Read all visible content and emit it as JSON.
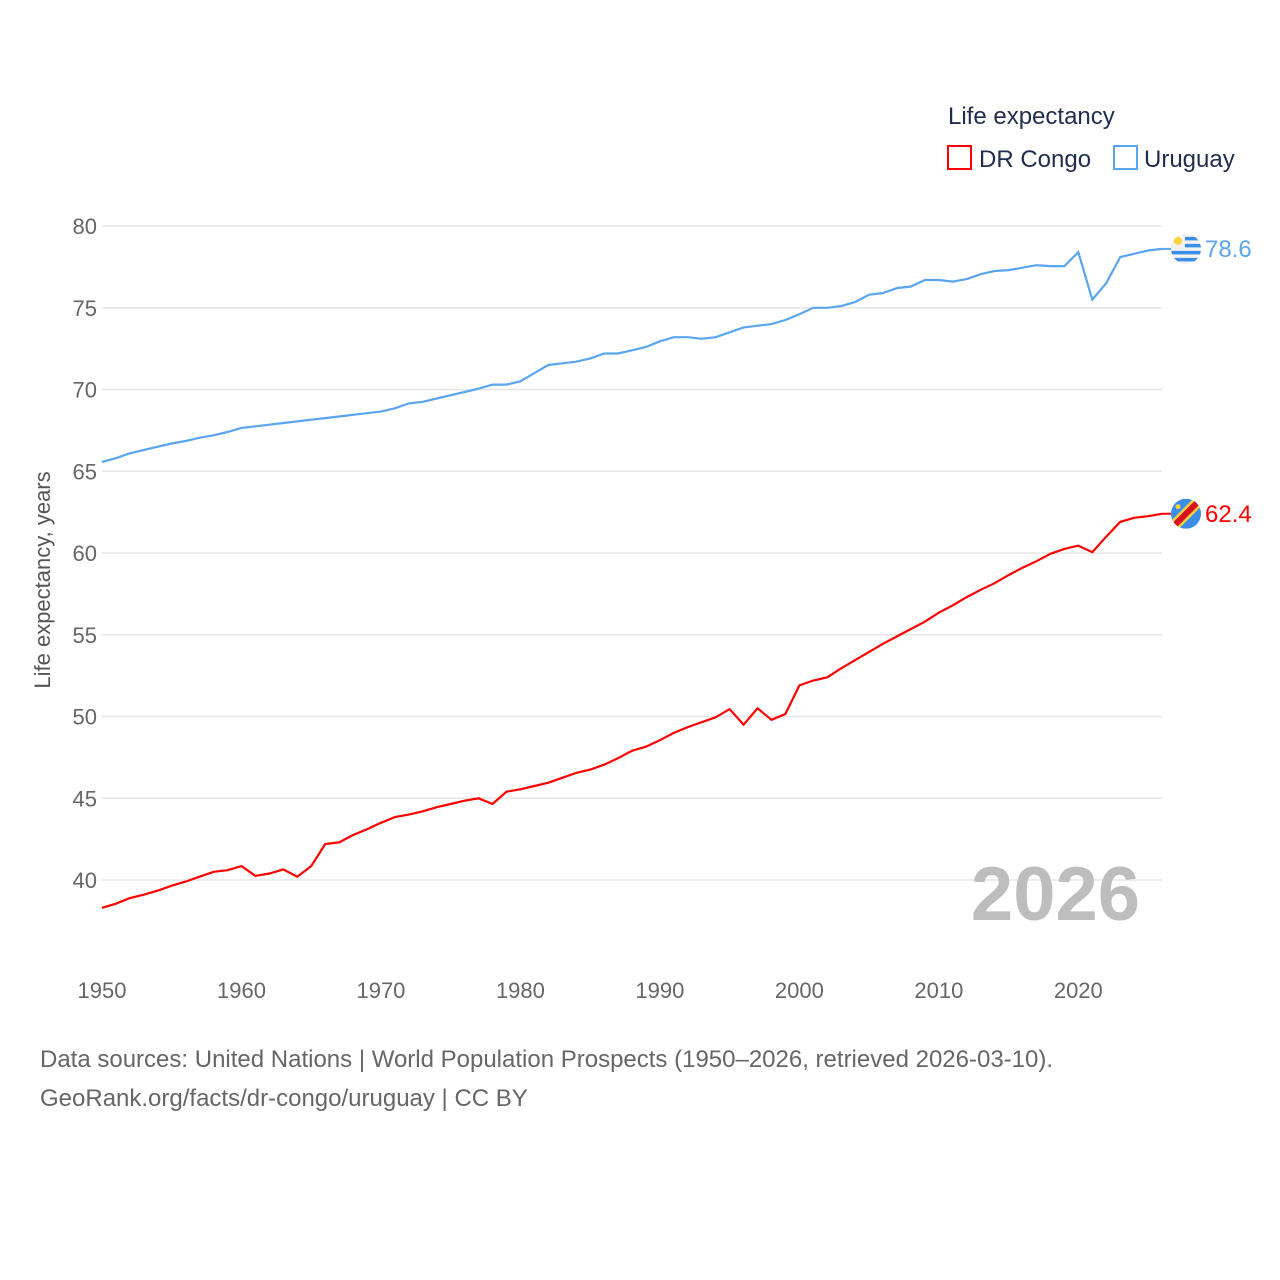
{
  "chart_data": {
    "type": "line",
    "ylabel": "Life expectancy, years",
    "legend_title": "Life expectancy",
    "legend_position": "top-right",
    "year_label": "2026",
    "xlim": [
      1950,
      2026
    ],
    "ylim": [
      36,
      82
    ],
    "x_ticks": [
      1950,
      1960,
      1970,
      1980,
      1990,
      2000,
      2010,
      2020
    ],
    "y_ticks": [
      40,
      45,
      50,
      55,
      60,
      65,
      70,
      75,
      80
    ],
    "grid": true,
    "x": [
      1950,
      1951,
      1952,
      1953,
      1954,
      1955,
      1956,
      1957,
      1958,
      1959,
      1960,
      1961,
      1962,
      1963,
      1964,
      1965,
      1966,
      1967,
      1968,
      1969,
      1970,
      1971,
      1972,
      1973,
      1974,
      1975,
      1976,
      1977,
      1978,
      1979,
      1980,
      1981,
      1982,
      1983,
      1984,
      1985,
      1986,
      1987,
      1988,
      1989,
      1990,
      1991,
      1992,
      1993,
      1994,
      1995,
      1996,
      1997,
      1998,
      1999,
      2000,
      2001,
      2002,
      2003,
      2004,
      2005,
      2006,
      2007,
      2008,
      2009,
      2010,
      2011,
      2012,
      2013,
      2014,
      2015,
      2016,
      2017,
      2018,
      2019,
      2020,
      2021,
      2022,
      2023,
      2024,
      2025,
      2026
    ],
    "series": [
      {
        "name": "DR Congo",
        "color": "#ff0000",
        "end_label": "62.4",
        "values": [
          38.3,
          38.55,
          38.9,
          39.1,
          39.35,
          39.65,
          39.9,
          40.2,
          40.5,
          40.6,
          40.85,
          40.25,
          40.4,
          40.65,
          40.2,
          40.85,
          42.2,
          42.3,
          42.75,
          43.1,
          43.5,
          43.85,
          44.0,
          44.2,
          44.45,
          44.65,
          44.85,
          45.0,
          44.65,
          45.4,
          45.55,
          45.75,
          45.95,
          46.25,
          46.55,
          46.75,
          47.05,
          47.45,
          47.9,
          48.15,
          48.55,
          49.0,
          49.35,
          49.65,
          49.95,
          50.45,
          49.5,
          50.5,
          49.8,
          50.15,
          51.9,
          52.2,
          52.4,
          52.95,
          53.45,
          53.95,
          54.45,
          54.9,
          55.35,
          55.8,
          56.35,
          56.8,
          57.3,
          57.75,
          58.15,
          58.65,
          59.1,
          59.5,
          59.95,
          60.25,
          60.45,
          60.05,
          61.0,
          61.9,
          62.15,
          62.25,
          62.4
        ]
      },
      {
        "name": "Uruguay",
        "color": "#5aa5ef",
        "end_label": "78.6",
        "values": [
          65.57,
          65.8,
          66.1,
          66.3,
          66.5,
          66.7,
          66.85,
          67.05,
          67.2,
          67.4,
          67.65,
          67.75,
          67.85,
          67.95,
          68.05,
          68.15,
          68.25,
          68.35,
          68.45,
          68.55,
          68.65,
          68.85,
          69.15,
          69.25,
          69.45,
          69.65,
          69.85,
          70.05,
          70.3,
          70.3,
          70.5,
          71.0,
          71.5,
          71.6,
          71.7,
          71.9,
          72.2,
          72.2,
          72.4,
          72.6,
          72.95,
          73.2,
          73.2,
          73.1,
          73.2,
          73.5,
          73.8,
          73.9,
          74.0,
          74.25,
          74.6,
          75.0,
          75.0,
          75.1,
          75.35,
          75.8,
          75.9,
          76.2,
          76.3,
          76.7,
          76.7,
          76.6,
          76.75,
          77.05,
          77.25,
          77.3,
          77.45,
          77.6,
          77.55,
          77.55,
          78.4,
          75.5,
          76.5,
          78.1,
          78.3,
          78.5,
          78.6
        ]
      }
    ]
  },
  "footer": {
    "line1": "Data sources: United Nations | World Population Prospects (1950–2026, retrieved 2026-03-10).",
    "line2": "GeoRank.org/facts/dr-congo/uruguay | CC BY"
  }
}
